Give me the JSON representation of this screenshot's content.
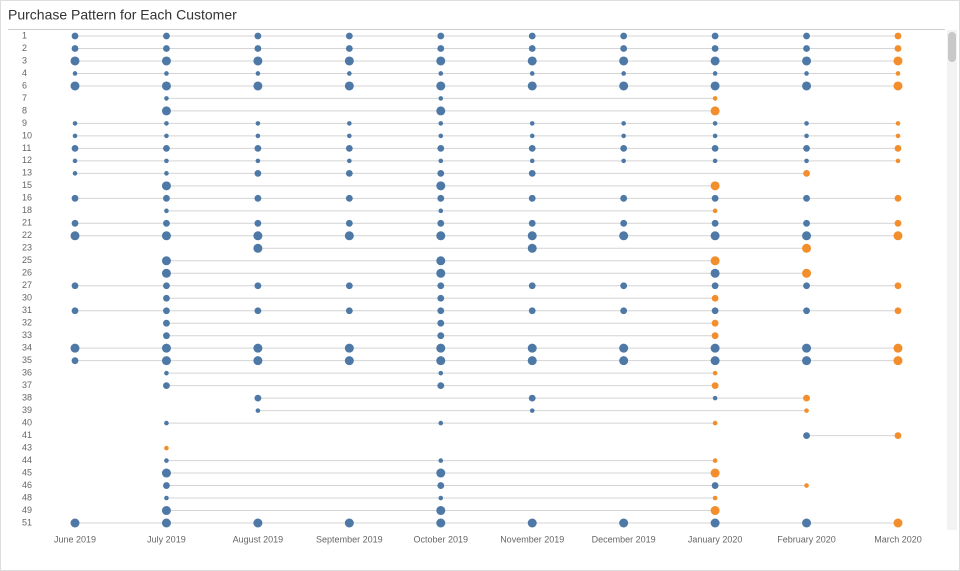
{
  "chart_data": {
    "type": "dot-matrix",
    "title": "Purchase Pattern for Each Customer",
    "categories": [
      "June 2019",
      "July 2019",
      "August 2019",
      "September 2019",
      "October 2019",
      "November 2019",
      "December 2019",
      "January 2020",
      "February 2020",
      "March 2020"
    ],
    "rows": [
      "1",
      "2",
      "3",
      "4",
      "6",
      "7",
      "8",
      "9",
      "10",
      "11",
      "12",
      "13",
      "15",
      "16",
      "18",
      "21",
      "22",
      "23",
      "25",
      "26",
      "27",
      "30",
      "31",
      "32",
      "33",
      "34",
      "35",
      "36",
      "37",
      "38",
      "39",
      "40",
      "41",
      "43",
      "44",
      "45",
      "46",
      "48",
      "49",
      "51"
    ],
    "values": [
      [
        2,
        2,
        2,
        2,
        2,
        2,
        2,
        2,
        2,
        2
      ],
      [
        2,
        2,
        2,
        2,
        2,
        2,
        2,
        2,
        2,
        2
      ],
      [
        3,
        3,
        3,
        3,
        3,
        3,
        3,
        3,
        3,
        3
      ],
      [
        1,
        1,
        1,
        1,
        1,
        1,
        1,
        1,
        1,
        1
      ],
      [
        3,
        3,
        3,
        3,
        3,
        3,
        3,
        3,
        3,
        3
      ],
      [
        null,
        1,
        null,
        null,
        1,
        null,
        null,
        1,
        null,
        null
      ],
      [
        null,
        3,
        null,
        null,
        3,
        null,
        null,
        3,
        null,
        null
      ],
      [
        1,
        1,
        1,
        1,
        1,
        1,
        1,
        1,
        1,
        1
      ],
      [
        1,
        1,
        1,
        1,
        1,
        1,
        1,
        1,
        1,
        1
      ],
      [
        2,
        2,
        2,
        2,
        2,
        2,
        2,
        2,
        2,
        2
      ],
      [
        1,
        1,
        1,
        1,
        1,
        1,
        1,
        1,
        1,
        1
      ],
      [
        1,
        1,
        2,
        2,
        2,
        2,
        null,
        null,
        2,
        null
      ],
      [
        null,
        3,
        null,
        null,
        3,
        null,
        null,
        3,
        null,
        null
      ],
      [
        2,
        2,
        2,
        2,
        2,
        2,
        2,
        2,
        2,
        2
      ],
      [
        null,
        1,
        null,
        null,
        1,
        null,
        null,
        1,
        null,
        null
      ],
      [
        2,
        2,
        2,
        2,
        2,
        2,
        2,
        2,
        2,
        2
      ],
      [
        3,
        3,
        3,
        3,
        3,
        3,
        3,
        3,
        3,
        3
      ],
      [
        null,
        null,
        3,
        null,
        null,
        3,
        null,
        null,
        3,
        null
      ],
      [
        null,
        3,
        null,
        null,
        3,
        null,
        null,
        3,
        null,
        null
      ],
      [
        null,
        3,
        null,
        null,
        3,
        null,
        null,
        3,
        3,
        null
      ],
      [
        2,
        2,
        2,
        2,
        2,
        2,
        2,
        2,
        2,
        2
      ],
      [
        null,
        2,
        null,
        null,
        2,
        null,
        null,
        2,
        null,
        null
      ],
      [
        2,
        2,
        2,
        2,
        2,
        2,
        2,
        2,
        2,
        2
      ],
      [
        null,
        2,
        null,
        null,
        2,
        null,
        null,
        2,
        null,
        null
      ],
      [
        null,
        2,
        null,
        null,
        2,
        null,
        null,
        2,
        null,
        null
      ],
      [
        3,
        3,
        3,
        3,
        3,
        3,
        3,
        3,
        3,
        3
      ],
      [
        2,
        3,
        3,
        3,
        3,
        3,
        3,
        3,
        3,
        3
      ],
      [
        null,
        1,
        null,
        null,
        1,
        null,
        null,
        1,
        null,
        null
      ],
      [
        null,
        2,
        null,
        null,
        2,
        null,
        null,
        2,
        null,
        null
      ],
      [
        null,
        null,
        2,
        null,
        null,
        2,
        null,
        1,
        2,
        null
      ],
      [
        null,
        null,
        1,
        null,
        null,
        1,
        null,
        null,
        1,
        null
      ],
      [
        null,
        1,
        null,
        null,
        1,
        null,
        null,
        1,
        null,
        null
      ],
      [
        null,
        null,
        null,
        null,
        null,
        null,
        null,
        null,
        2,
        2
      ],
      [
        null,
        1,
        null,
        null,
        null,
        null,
        null,
        null,
        null,
        null
      ],
      [
        null,
        1,
        null,
        null,
        1,
        null,
        null,
        1,
        null,
        null
      ],
      [
        null,
        3,
        null,
        null,
        3,
        null,
        null,
        3,
        null,
        null
      ],
      [
        null,
        2,
        null,
        null,
        2,
        null,
        null,
        2,
        1,
        null
      ],
      [
        null,
        1,
        null,
        null,
        1,
        null,
        null,
        1,
        null,
        null
      ],
      [
        null,
        3,
        null,
        null,
        3,
        null,
        null,
        3,
        null,
        null
      ],
      [
        3,
        3,
        3,
        3,
        3,
        3,
        3,
        3,
        3,
        3
      ]
    ],
    "color": "#4e79a7",
    "last_color": "#f28e2b"
  }
}
